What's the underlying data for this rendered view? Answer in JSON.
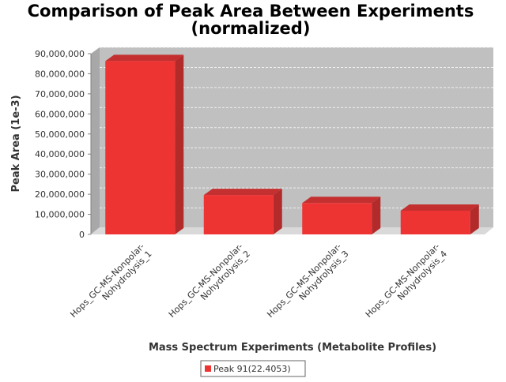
{
  "chart_data": {
    "type": "bar",
    "title": [
      "Comparison of Peak Area Between Experiments",
      "(normalized)"
    ],
    "xlabel": "Mass Spectrum Experiments (Metabolite Profiles)",
    "ylabel": "Peak Area (1e-3)",
    "categories": [
      [
        "Hops_GC-MS-Nonpolar-",
        "Nohydrolysis_1"
      ],
      [
        "Hops_GC-MS-Nonpolar-",
        "Nohydrolysis_2"
      ],
      [
        "Hops_GC-MS-Nonpolar-",
        "Nohydrolysis_3"
      ],
      [
        "Hops_GC-MS-Nonpolar-",
        "Nohydrolysis_4"
      ]
    ],
    "series": [
      {
        "name": "Peak 91(22.4053)",
        "color": "#ee3333",
        "values": [
          86300000,
          19600000,
          15600000,
          11800000
        ]
      }
    ],
    "ylim": [
      0,
      90000000
    ],
    "yticks": [
      0,
      10000000,
      20000000,
      30000000,
      40000000,
      50000000,
      60000000,
      70000000,
      80000000,
      90000000
    ],
    "ytick_labels": [
      "0",
      "10,000,000",
      "20,000,000",
      "30,000,000",
      "40,000,000",
      "50,000,000",
      "60,000,000",
      "70,000,000",
      "80,000,000",
      "90,000,000"
    ],
    "grid": true,
    "legend_position": "bottom",
    "plot_background": "#c0c0c0"
  }
}
